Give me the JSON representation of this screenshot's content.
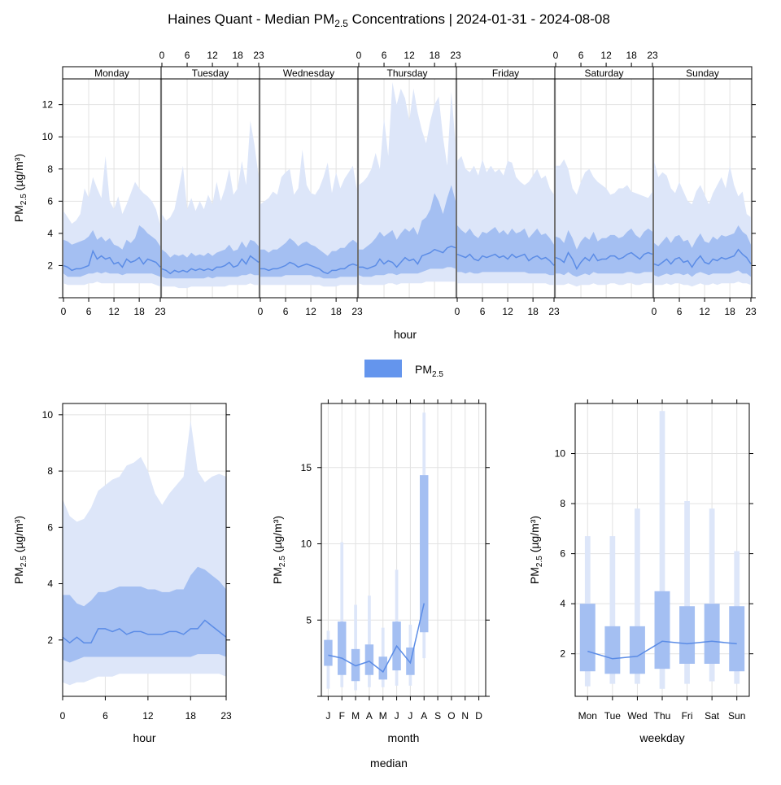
{
  "title": {
    "prefix": "Haines Quant - Median PM",
    "sub": "2.5",
    "suffix": " Concentrations | 2024-01-31 - 2024-08-08"
  },
  "colors": {
    "outer_band": "#dde6f9",
    "inner_band": "#a4bff2",
    "median_line": "#5b8ce6",
    "legend_swatch": "#6495ed",
    "grid": "#e2e2e2",
    "strip": "#ffffff"
  },
  "legend": {
    "prefix": "PM",
    "sub": "2.5"
  },
  "ylabel": {
    "prefix": "PM",
    "sub": "2.5",
    "suffix": " (µg/m³)"
  },
  "bottom_label": "median",
  "chart_data": [
    {
      "type": "area",
      "name": "hour-weekday",
      "panels": [
        "Monday",
        "Tuesday",
        "Wednesday",
        "Thursday",
        "Friday",
        "Saturday",
        "Sunday"
      ],
      "xlabel": "hour",
      "x_ticks": [
        0,
        6,
        12,
        18,
        23
      ],
      "xlim": [
        0,
        23
      ],
      "ylim": [
        0,
        13.6
      ],
      "y_ticks": [
        2,
        4,
        6,
        8,
        10,
        12
      ],
      "median": [
        [
          2.0,
          1.9,
          1.7,
          1.8,
          1.8,
          1.9,
          2.0,
          2.9,
          2.4,
          2.6,
          2.4,
          2.5,
          2.1,
          2.2,
          1.9,
          2.4,
          2.2,
          2.3,
          2.5,
          2.1,
          2.4,
          2.3,
          2.2,
          1.9
        ],
        [
          1.8,
          1.7,
          1.5,
          1.7,
          1.6,
          1.7,
          1.6,
          1.8,
          1.7,
          1.8,
          1.7,
          1.8,
          1.7,
          1.9,
          1.9,
          2.0,
          2.2,
          1.9,
          2.0,
          2.4,
          2.1,
          2.6,
          2.4,
          2.2
        ],
        [
          1.8,
          1.8,
          1.7,
          1.8,
          1.8,
          1.9,
          2.0,
          2.2,
          2.1,
          1.9,
          2.0,
          2.1,
          2.0,
          1.9,
          1.8,
          1.6,
          1.5,
          1.7,
          1.7,
          1.8,
          1.8,
          2.0,
          2.1,
          2.0
        ],
        [
          1.9,
          1.9,
          1.8,
          1.9,
          2.0,
          2.4,
          2.1,
          2.3,
          2.2,
          1.9,
          2.2,
          2.5,
          2.3,
          2.4,
          2.1,
          2.6,
          2.7,
          2.8,
          3.0,
          2.9,
          2.8,
          3.1,
          3.2,
          3.1
        ],
        [
          2.7,
          2.6,
          2.5,
          2.7,
          2.4,
          2.3,
          2.6,
          2.5,
          2.6,
          2.7,
          2.5,
          2.6,
          2.4,
          2.7,
          2.5,
          2.6,
          2.7,
          2.3,
          2.5,
          2.6,
          2.4,
          2.5,
          2.3,
          2.0
        ],
        [
          2.5,
          2.4,
          2.2,
          2.8,
          2.4,
          1.8,
          2.2,
          2.5,
          2.3,
          2.7,
          2.3,
          2.4,
          2.4,
          2.6,
          2.6,
          2.4,
          2.5,
          2.7,
          2.8,
          2.6,
          2.4,
          2.7,
          2.8,
          2.7
        ],
        [
          2.1,
          2.0,
          2.2,
          2.4,
          2.1,
          2.4,
          2.5,
          2.2,
          2.3,
          1.9,
          2.3,
          2.6,
          2.2,
          2.1,
          2.4,
          2.3,
          2.5,
          2.4,
          2.5,
          2.6,
          3.0,
          2.7,
          2.5,
          2.1
        ]
      ],
      "q25": [
        [
          1.5,
          1.3,
          1.3,
          1.3,
          1.3,
          1.4,
          1.5,
          1.5,
          1.6,
          1.5,
          1.6,
          1.5,
          1.5,
          1.5,
          1.4,
          1.5,
          1.5,
          1.5,
          1.5,
          1.5,
          1.5,
          1.5,
          1.4,
          1.3
        ],
        [
          1.3,
          1.2,
          1.2,
          1.2,
          1.2,
          1.2,
          1.2,
          1.2,
          1.2,
          1.2,
          1.2,
          1.3,
          1.2,
          1.3,
          1.3,
          1.3,
          1.3,
          1.3,
          1.3,
          1.4,
          1.4,
          1.5,
          1.4,
          1.4
        ],
        [
          1.3,
          1.3,
          1.3,
          1.3,
          1.3,
          1.3,
          1.4,
          1.4,
          1.4,
          1.4,
          1.4,
          1.4,
          1.4,
          1.3,
          1.3,
          1.2,
          1.2,
          1.2,
          1.2,
          1.3,
          1.3,
          1.3,
          1.3,
          1.3
        ],
        [
          1.4,
          1.3,
          1.3,
          1.3,
          1.4,
          1.4,
          1.4,
          1.5,
          1.5,
          1.4,
          1.5,
          1.5,
          1.5,
          1.5,
          1.5,
          1.6,
          1.7,
          1.8,
          1.8,
          1.8,
          1.8,
          1.9,
          1.9,
          1.8
        ],
        [
          1.6,
          1.6,
          1.5,
          1.6,
          1.5,
          1.5,
          1.6,
          1.6,
          1.6,
          1.6,
          1.6,
          1.6,
          1.6,
          1.6,
          1.6,
          1.6,
          1.6,
          1.5,
          1.5,
          1.5,
          1.5,
          1.5,
          1.4,
          1.4
        ],
        [
          1.5,
          1.5,
          1.4,
          1.6,
          1.4,
          1.3,
          1.4,
          1.5,
          1.4,
          1.6,
          1.5,
          1.5,
          1.5,
          1.5,
          1.5,
          1.5,
          1.5,
          1.6,
          1.6,
          1.5,
          1.5,
          1.6,
          1.6,
          1.6
        ],
        [
          1.4,
          1.3,
          1.4,
          1.5,
          1.4,
          1.5,
          1.5,
          1.4,
          1.5,
          1.3,
          1.5,
          1.6,
          1.5,
          1.4,
          1.5,
          1.5,
          1.5,
          1.5,
          1.5,
          1.6,
          1.7,
          1.5,
          1.5,
          1.3
        ]
      ],
      "q75": [
        [
          3.6,
          3.5,
          3.3,
          3.4,
          3.5,
          3.6,
          3.8,
          4.2,
          3.6,
          3.8,
          3.5,
          3.7,
          3.3,
          3.2,
          3.0,
          3.6,
          3.4,
          3.7,
          4.5,
          4.3,
          4.0,
          3.8,
          3.6,
          3.2
        ],
        [
          3.0,
          2.8,
          2.5,
          2.7,
          2.6,
          2.7,
          2.5,
          2.8,
          2.6,
          2.7,
          2.6,
          2.8,
          2.6,
          2.8,
          2.9,
          3.0,
          3.3,
          2.9,
          3.0,
          3.5,
          3.1,
          3.6,
          3.5,
          3.2
        ],
        [
          3.0,
          3.0,
          2.8,
          3.0,
          3.0,
          3.2,
          3.4,
          3.7,
          3.5,
          3.2,
          3.4,
          3.5,
          3.3,
          3.2,
          3.0,
          2.8,
          2.6,
          2.9,
          2.9,
          3.1,
          3.1,
          3.4,
          3.6,
          3.4
        ],
        [
          3.0,
          3.0,
          3.2,
          3.4,
          3.7,
          4.1,
          3.8,
          4.0,
          4.2,
          3.6,
          4.0,
          4.3,
          4.1,
          4.4,
          3.9,
          4.8,
          5.0,
          5.5,
          6.5,
          6.0,
          5.2,
          6.2,
          7.0,
          6.0
        ],
        [
          4.5,
          4.2,
          4.0,
          4.3,
          3.9,
          3.7,
          4.1,
          4.0,
          4.2,
          4.4,
          4.0,
          4.2,
          3.9,
          4.3,
          4.0,
          4.1,
          4.3,
          3.7,
          4.0,
          4.3,
          3.9,
          4.0,
          3.7,
          3.3
        ],
        [
          3.8,
          3.7,
          3.4,
          4.2,
          3.7,
          3.0,
          3.5,
          3.8,
          3.6,
          4.1,
          3.5,
          3.7,
          3.7,
          3.9,
          3.9,
          3.7,
          3.8,
          4.1,
          4.3,
          3.9,
          3.7,
          4.1,
          4.3,
          4.1
        ],
        [
          3.4,
          3.2,
          3.5,
          3.8,
          3.4,
          3.8,
          3.9,
          3.5,
          3.6,
          3.1,
          3.6,
          4.0,
          3.5,
          3.4,
          3.8,
          3.6,
          3.9,
          3.8,
          3.9,
          4.0,
          4.5,
          4.1,
          3.9,
          3.3
        ]
      ],
      "q05": [
        [
          0.9,
          0.8,
          0.8,
          0.8,
          0.8,
          0.8,
          0.9,
          0.9,
          1.0,
          0.9,
          0.9,
          0.9,
          0.9,
          0.9,
          0.9,
          0.9,
          0.9,
          0.9,
          0.9,
          0.9,
          0.9,
          0.9,
          0.8,
          0.7
        ],
        [
          0.7,
          0.7,
          0.7,
          0.7,
          0.6,
          0.6,
          0.6,
          0.7,
          0.7,
          0.7,
          0.7,
          0.7,
          0.7,
          0.7,
          0.7,
          0.7,
          0.8,
          0.8,
          0.8,
          0.8,
          0.8,
          0.9,
          0.8,
          0.8
        ],
        [
          0.8,
          0.8,
          0.8,
          0.8,
          0.8,
          0.8,
          0.8,
          0.8,
          0.8,
          0.8,
          0.8,
          0.8,
          0.8,
          0.8,
          0.8,
          0.7,
          0.7,
          0.7,
          0.7,
          0.8,
          0.8,
          0.8,
          0.8,
          0.8
        ],
        [
          0.9,
          0.8,
          0.8,
          0.8,
          0.8,
          0.8,
          0.8,
          0.9,
          0.9,
          0.8,
          0.9,
          0.9,
          0.9,
          0.9,
          0.9,
          0.9,
          1.0,
          1.0,
          1.0,
          1.0,
          1.0,
          1.0,
          1.0,
          1.0
        ],
        [
          0.9,
          0.9,
          0.9,
          0.9,
          0.9,
          0.9,
          0.9,
          0.9,
          0.9,
          0.9,
          0.9,
          0.9,
          0.9,
          0.9,
          0.9,
          0.9,
          0.9,
          0.9,
          0.9,
          0.9,
          0.9,
          0.9,
          0.8,
          0.8
        ],
        [
          0.8,
          0.8,
          0.8,
          0.9,
          0.8,
          0.7,
          0.8,
          0.8,
          0.8,
          0.9,
          0.8,
          0.8,
          0.8,
          0.9,
          0.9,
          0.8,
          0.8,
          0.9,
          0.9,
          0.8,
          0.8,
          0.9,
          0.9,
          0.9
        ],
        [
          0.8,
          0.8,
          0.8,
          0.9,
          0.8,
          0.9,
          0.9,
          0.8,
          0.8,
          0.7,
          0.8,
          0.9,
          0.8,
          0.8,
          0.9,
          0.8,
          0.9,
          0.9,
          0.9,
          0.9,
          1.0,
          0.9,
          0.9,
          0.8
        ]
      ],
      "q95": [
        [
          5.4,
          5.0,
          4.6,
          4.8,
          5.2,
          6.8,
          6.2,
          7.5,
          6.8,
          6.2,
          8.8,
          6.0,
          5.5,
          6.3,
          5.2,
          5.8,
          6.5,
          7.2,
          6.8,
          6.5,
          6.3,
          6.0,
          5.5,
          4.5
        ],
        [
          5.2,
          4.8,
          5.0,
          5.5,
          6.8,
          8.2,
          5.5,
          6.2,
          5.4,
          6.0,
          5.5,
          6.4,
          5.8,
          7.2,
          6.0,
          6.8,
          8.0,
          6.4,
          6.8,
          8.5,
          7.0,
          11.0,
          9.5,
          7.5
        ],
        [
          5.8,
          6.0,
          6.2,
          6.6,
          6.4,
          7.5,
          7.8,
          8.0,
          6.4,
          6.8,
          9.2,
          7.0,
          6.5,
          6.4,
          6.8,
          7.5,
          8.4,
          6.5,
          7.8,
          6.8,
          7.4,
          7.8,
          8.2,
          6.6
        ],
        [
          7.0,
          7.2,
          7.5,
          8.0,
          9.0,
          8.0,
          11.2,
          8.8,
          13.4,
          12.0,
          13.0,
          12.4,
          11.0,
          13.0,
          11.5,
          10.4,
          9.6,
          11.0,
          12.0,
          12.5,
          10.0,
          8.2,
          12.8,
          9.5
        ],
        [
          8.5,
          8.8,
          8.0,
          7.8,
          8.2,
          7.6,
          8.6,
          7.8,
          8.2,
          7.8,
          8.0,
          7.6,
          8.5,
          8.4,
          7.5,
          7.2,
          7.0,
          7.2,
          7.6,
          8.0,
          7.4,
          7.6,
          6.8,
          6.4
        ],
        [
          8.2,
          8.2,
          8.6,
          8.0,
          6.8,
          6.4,
          7.2,
          7.8,
          8.0,
          7.5,
          7.2,
          7.0,
          6.8,
          6.4,
          6.5,
          6.8,
          6.8,
          7.0,
          6.6,
          6.5,
          6.4,
          6.3,
          6.2,
          6.6
        ],
        [
          8.5,
          7.5,
          7.8,
          7.6,
          6.8,
          6.5,
          7.2,
          6.6,
          6.0,
          5.8,
          6.6,
          7.0,
          6.4,
          5.8,
          6.5,
          7.0,
          7.5,
          6.8,
          8.2,
          7.0,
          6.3,
          6.6,
          5.2,
          5.0
        ]
      ]
    },
    {
      "type": "area",
      "name": "hour",
      "xlabel": "hour",
      "x_ticks": [
        0,
        6,
        12,
        18,
        23
      ],
      "xlim": [
        0,
        23
      ],
      "ylim": [
        0,
        10.4
      ],
      "y_ticks": [
        2,
        4,
        6,
        8,
        10
      ],
      "median": [
        2.1,
        1.9,
        2.1,
        1.9,
        1.9,
        2.4,
        2.4,
        2.3,
        2.4,
        2.2,
        2.3,
        2.3,
        2.2,
        2.2,
        2.2,
        2.3,
        2.3,
        2.2,
        2.4,
        2.4,
        2.7,
        2.5,
        2.3,
        2.1
      ],
      "q25": [
        1.3,
        1.2,
        1.3,
        1.4,
        1.4,
        1.4,
        1.4,
        1.4,
        1.4,
        1.4,
        1.4,
        1.4,
        1.4,
        1.4,
        1.4,
        1.4,
        1.4,
        1.4,
        1.4,
        1.5,
        1.5,
        1.5,
        1.5,
        1.4
      ],
      "q75": [
        3.6,
        3.6,
        3.3,
        3.2,
        3.4,
        3.7,
        3.7,
        3.8,
        3.9,
        3.9,
        3.9,
        3.9,
        3.8,
        3.8,
        3.7,
        3.7,
        3.8,
        3.8,
        4.3,
        4.6,
        4.5,
        4.3,
        4.1,
        3.8
      ],
      "q05": [
        0.5,
        0.4,
        0.5,
        0.5,
        0.6,
        0.7,
        0.7,
        0.7,
        0.8,
        0.8,
        0.8,
        0.8,
        0.8,
        0.8,
        0.8,
        0.8,
        0.8,
        0.8,
        0.8,
        0.8,
        0.8,
        0.8,
        0.8,
        0.7
      ],
      "q95": [
        7.0,
        6.4,
        6.2,
        6.3,
        6.7,
        7.3,
        7.5,
        7.7,
        7.8,
        8.2,
        8.3,
        8.5,
        8.0,
        7.2,
        6.8,
        7.2,
        7.5,
        7.8,
        9.8,
        8.0,
        7.6,
        7.8,
        7.9,
        7.8
      ]
    },
    {
      "type": "bar",
      "name": "month",
      "xlabel": "month",
      "categories": [
        "J",
        "F",
        "M",
        "A",
        "M",
        "J",
        "J",
        "A",
        "S",
        "O",
        "N",
        "D"
      ],
      "ylim": [
        0,
        19.2
      ],
      "y_ticks": [
        5,
        10,
        15
      ],
      "median": [
        2.7,
        2.5,
        2.0,
        2.3,
        1.6,
        3.3,
        2.2,
        6.1,
        null,
        null,
        null,
        null
      ],
      "q25": [
        2.0,
        1.4,
        1.0,
        1.4,
        1.1,
        1.7,
        1.4,
        4.2,
        null,
        null,
        null,
        null
      ],
      "q75": [
        3.7,
        4.9,
        3.1,
        3.4,
        2.6,
        4.9,
        3.2,
        14.5,
        null,
        null,
        null,
        null
      ],
      "q05": [
        0.5,
        0.6,
        0.4,
        0.6,
        0.6,
        0.7,
        0.7,
        2.5,
        null,
        null,
        null,
        null
      ],
      "q95": [
        4.3,
        10.1,
        6.0,
        6.6,
        4.5,
        8.3,
        4.7,
        18.6,
        null,
        null,
        null,
        null
      ]
    },
    {
      "type": "bar",
      "name": "weekday",
      "xlabel": "weekday",
      "categories": [
        "Mon",
        "Tue",
        "Wed",
        "Thu",
        "Fri",
        "Sat",
        "Sun"
      ],
      "ylim": [
        0.3,
        12.0
      ],
      "y_ticks": [
        2,
        4,
        6,
        8,
        10
      ],
      "median": [
        2.1,
        1.8,
        1.9,
        2.5,
        2.4,
        2.5,
        2.4
      ],
      "q25": [
        1.3,
        1.2,
        1.2,
        1.4,
        1.6,
        1.6,
        1.3
      ],
      "q75": [
        4.0,
        3.1,
        3.1,
        4.5,
        3.9,
        4.0,
        3.9
      ],
      "q05": [
        0.7,
        0.8,
        0.8,
        0.6,
        0.8,
        0.9,
        0.8
      ],
      "q95": [
        6.7,
        6.7,
        7.8,
        11.7,
        8.1,
        7.8,
        6.1
      ]
    }
  ]
}
